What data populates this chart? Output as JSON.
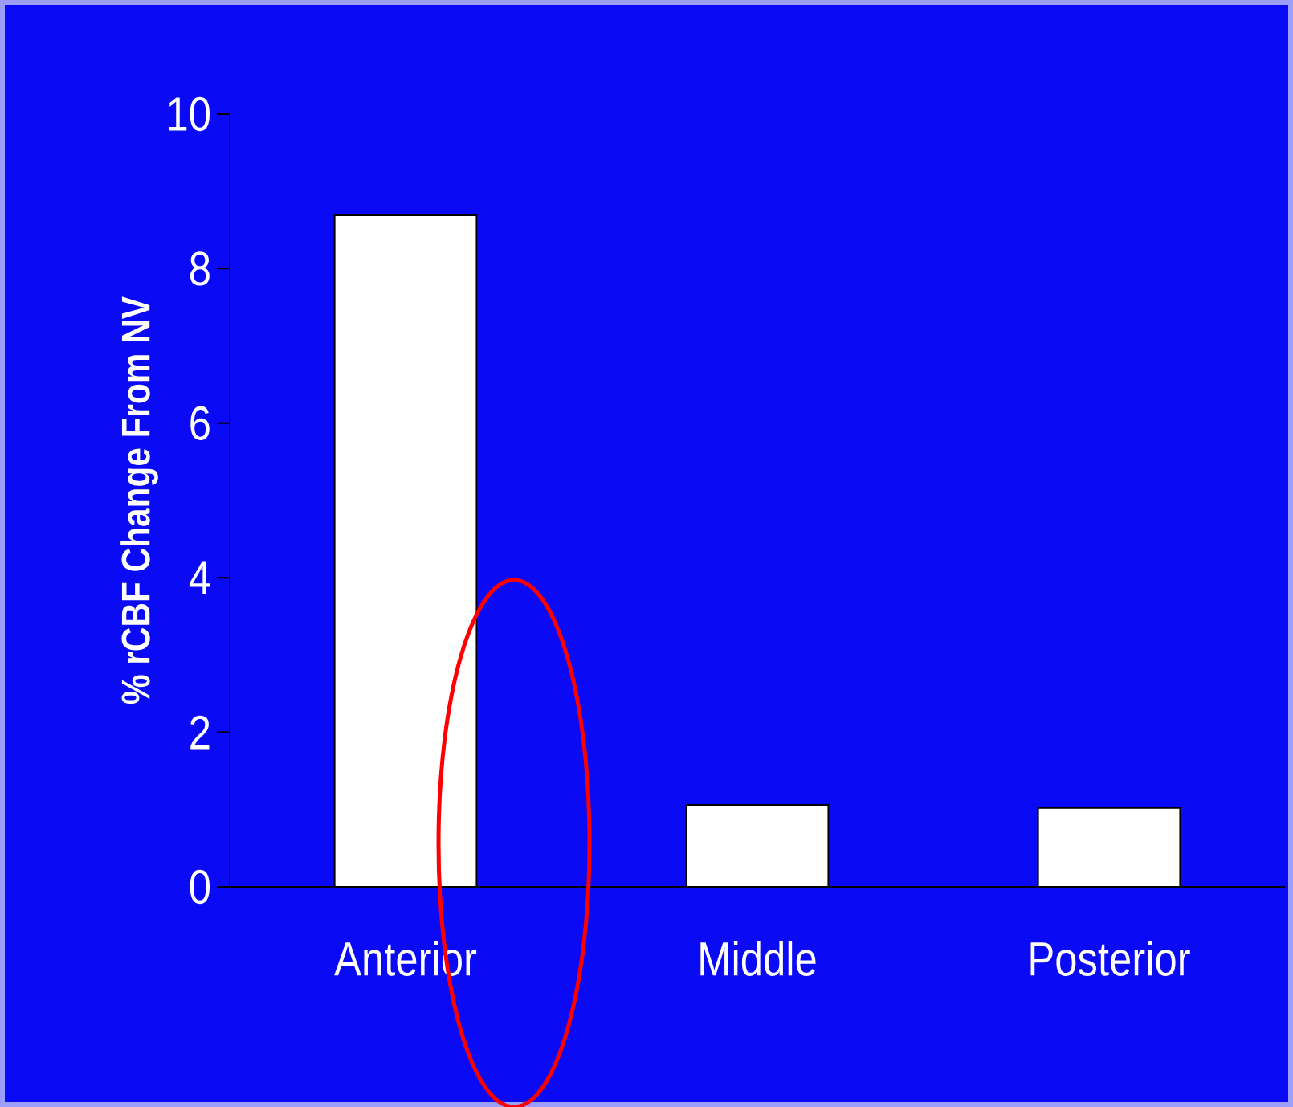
{
  "chart_data": {
    "type": "bar",
    "ylabel": "% rCBF Change From NV",
    "categories": [
      "Anterior",
      "Middle",
      "Posterior"
    ],
    "values": [
      8.69,
      1.06,
      1.02
    ],
    "color": "#ffffff",
    "ylim": [
      0,
      10
    ],
    "yticks": [
      0,
      2,
      4,
      6,
      8,
      10
    ]
  }
}
